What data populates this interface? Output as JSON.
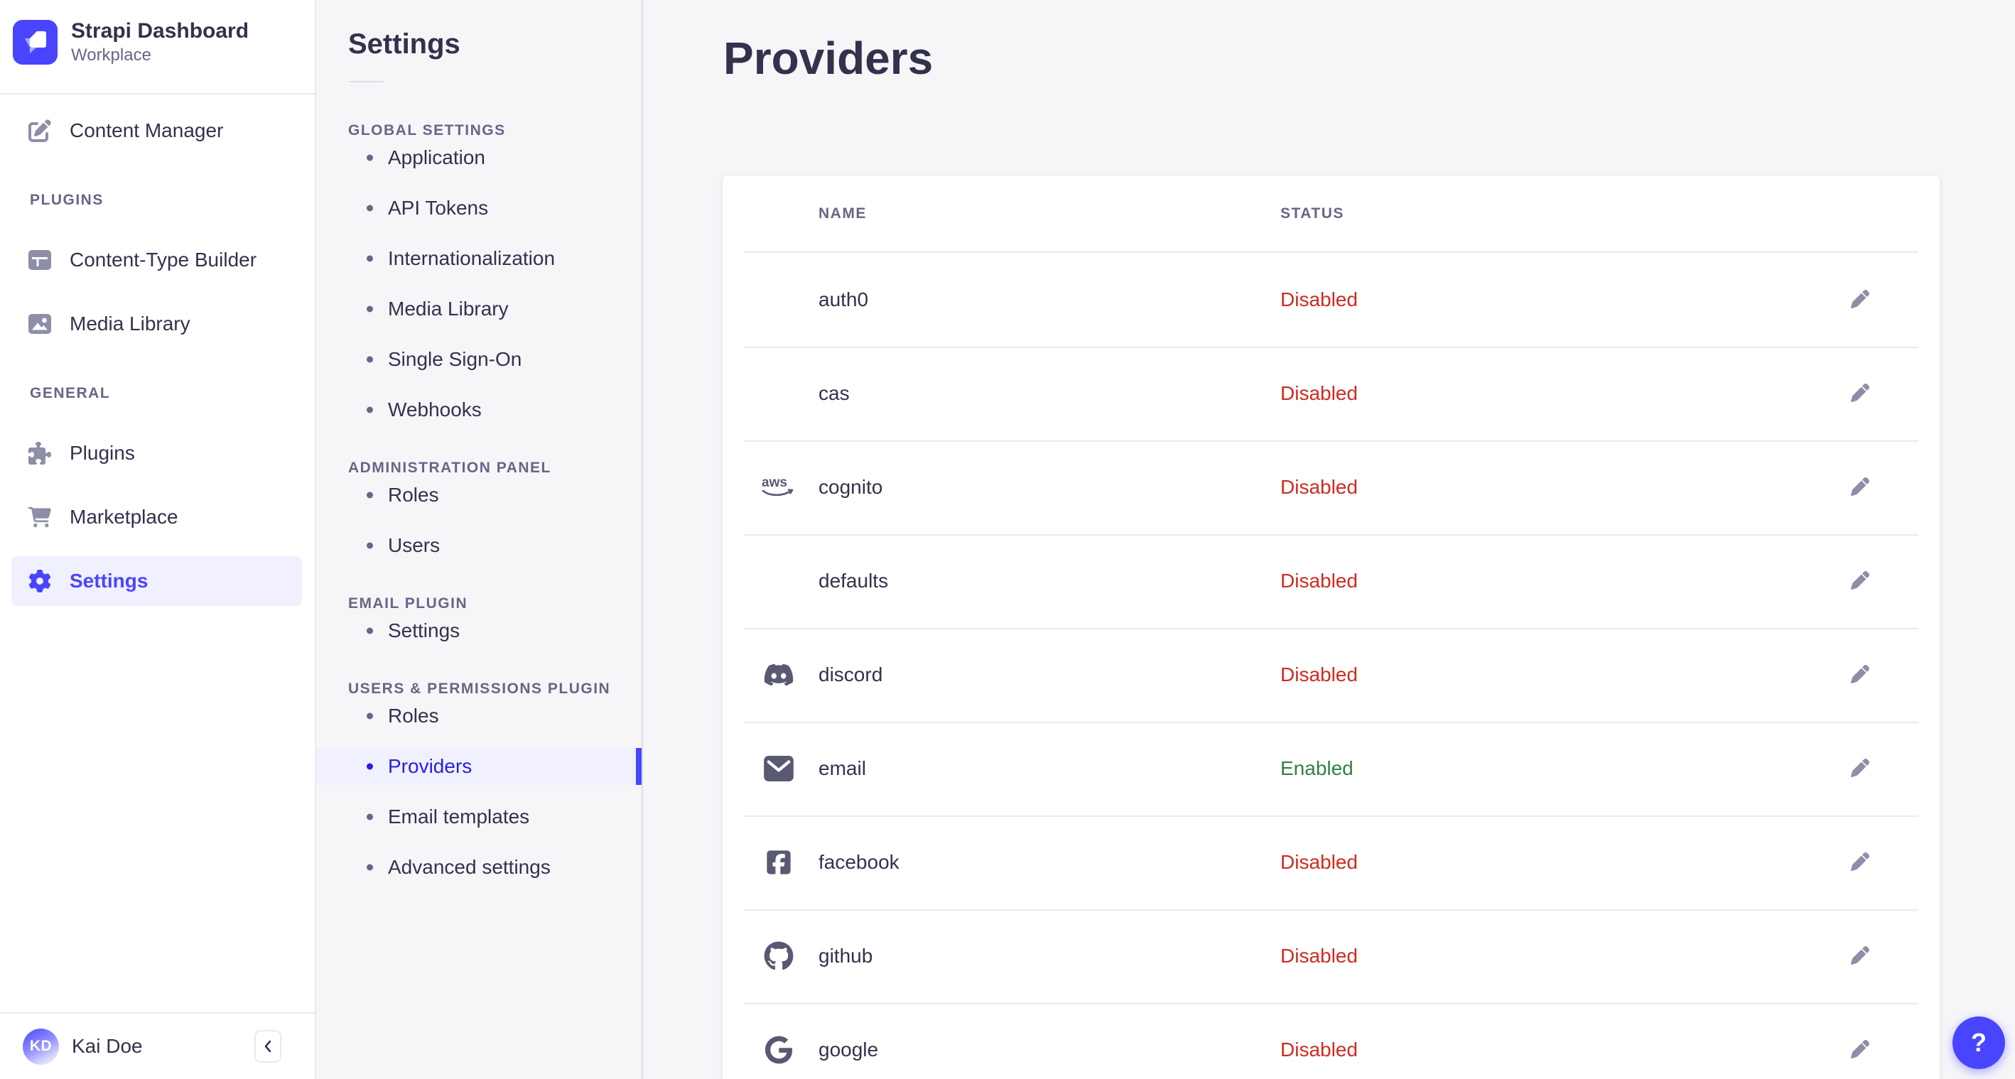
{
  "app": {
    "name": "Strapi Dashboard",
    "workspace": "Workplace",
    "help_label": "?",
    "user": {
      "name": "Kai Doe",
      "initials": "KD"
    }
  },
  "sidebar": {
    "sections": [
      {
        "label": null,
        "items": [
          {
            "label": "Content Manager",
            "icon": "pen-square",
            "active": false
          }
        ]
      },
      {
        "label": "PLUGINS",
        "items": [
          {
            "label": "Content-Type Builder",
            "icon": "layout",
            "active": false
          },
          {
            "label": "Media Library",
            "icon": "image",
            "active": false
          }
        ]
      },
      {
        "label": "GENERAL",
        "items": [
          {
            "label": "Plugins",
            "icon": "puzzle",
            "active": false
          },
          {
            "label": "Marketplace",
            "icon": "cart",
            "active": false
          },
          {
            "label": "Settings",
            "icon": "gear",
            "active": true
          }
        ]
      }
    ]
  },
  "settings_nav": {
    "title": "Settings",
    "sections": [
      {
        "label": "GLOBAL SETTINGS",
        "items": [
          {
            "label": "Application"
          },
          {
            "label": "API Tokens"
          },
          {
            "label": "Internationalization"
          },
          {
            "label": "Media Library"
          },
          {
            "label": "Single Sign-On"
          },
          {
            "label": "Webhooks"
          }
        ]
      },
      {
        "label": "ADMINISTRATION PANEL",
        "items": [
          {
            "label": "Roles"
          },
          {
            "label": "Users"
          }
        ]
      },
      {
        "label": "EMAIL PLUGIN",
        "items": [
          {
            "label": "Settings"
          }
        ]
      },
      {
        "label": "USERS & PERMISSIONS PLUGIN",
        "items": [
          {
            "label": "Roles"
          },
          {
            "label": "Providers",
            "active": true
          },
          {
            "label": "Email templates"
          },
          {
            "label": "Advanced settings"
          }
        ]
      }
    ]
  },
  "main": {
    "title": "Providers",
    "table": {
      "columns": [
        "NAME",
        "STATUS"
      ],
      "rows": [
        {
          "name": "auth0",
          "icon": null,
          "status": "Disabled"
        },
        {
          "name": "cas",
          "icon": null,
          "status": "Disabled"
        },
        {
          "name": "cognito",
          "icon": "aws",
          "status": "Disabled"
        },
        {
          "name": "defaults",
          "icon": null,
          "status": "Disabled"
        },
        {
          "name": "discord",
          "icon": "discord",
          "status": "Disabled"
        },
        {
          "name": "email",
          "icon": "envelope",
          "status": "Enabled"
        },
        {
          "name": "facebook",
          "icon": "facebook",
          "status": "Disabled"
        },
        {
          "name": "github",
          "icon": "github",
          "status": "Disabled"
        },
        {
          "name": "google",
          "icon": "google",
          "status": "Disabled"
        }
      ]
    }
  },
  "colors": {
    "primary": "#4945ff",
    "active_text": "#271fe0",
    "highlight_bg": "#f0f0ff",
    "danger": "#d02b20",
    "success": "#328048",
    "text": "#32324d",
    "muted": "#666687",
    "icon": "#8e8ea9",
    "border": "#eaeaef",
    "background": "#f6f6f9"
  }
}
